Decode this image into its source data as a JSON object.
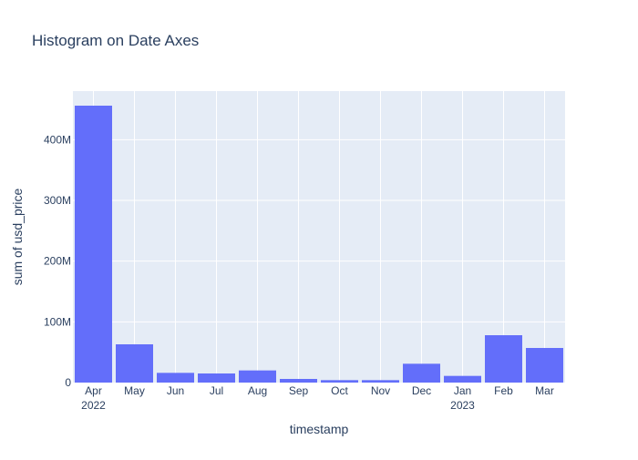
{
  "chart_data": {
    "type": "bar",
    "title": "Histogram on Date Axes",
    "xlabel": "timestamp",
    "ylabel": "sum of usd_price",
    "categories": [
      "Apr",
      "May",
      "Jun",
      "Jul",
      "Aug",
      "Sep",
      "Oct",
      "Nov",
      "Dec",
      "Jan",
      "Feb",
      "Mar"
    ],
    "year_labels": [
      "2022",
      "",
      "",
      "",
      "",
      "",
      "",
      "",
      "",
      "2023",
      "",
      ""
    ],
    "values": [
      456000000,
      63000000,
      16000000,
      15000000,
      20000000,
      6000000,
      4000000,
      4000000,
      31000000,
      11000000,
      78000000,
      57000000
    ],
    "ylim": [
      0,
      480000000
    ],
    "yticks": [
      0,
      100000000,
      200000000,
      300000000,
      400000000
    ],
    "ytick_labels": [
      "0",
      "100M",
      "200M",
      "300M",
      "400M"
    ],
    "grid": true,
    "colors": {
      "bar": "#636efa",
      "plot_bg": "#e5ecf6",
      "grid": "#ffffff",
      "text": "#2a3f5f"
    }
  }
}
